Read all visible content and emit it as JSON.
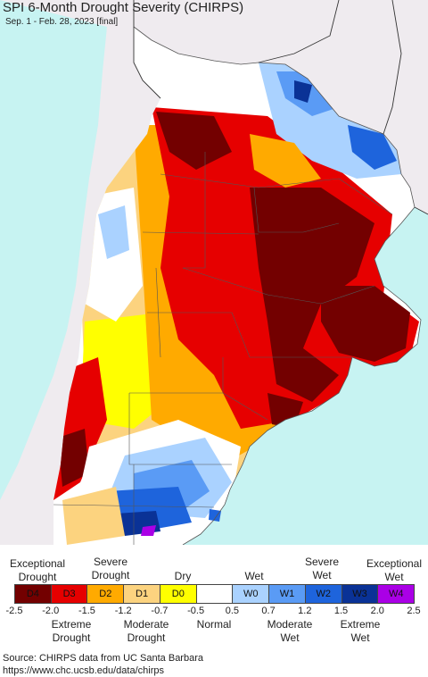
{
  "header": {
    "title": "SPI 6-Month Drought Severity (CHIRPS)",
    "subtitle": "Sep. 1 - Feb. 28, 2023 [final]"
  },
  "map": {
    "ocean_color": "#c7f3f2",
    "outside_land_color": "#efebef",
    "border_color": "#555555"
  },
  "legend": {
    "top_labels": [
      {
        "text": "Exceptional\nDrought"
      },
      {
        "text": "Severe\nDrought"
      },
      {
        "text": "Dry"
      },
      {
        "text": "Wet"
      },
      {
        "text": "Severe\nWet"
      },
      {
        "text": "Exceptional\nWet"
      }
    ],
    "categories": [
      {
        "code": "D4",
        "color": "#730000"
      },
      {
        "code": "D3",
        "color": "#e60000"
      },
      {
        "code": "D2",
        "color": "#ffaa00"
      },
      {
        "code": "D1",
        "color": "#fcd37f"
      },
      {
        "code": "D0",
        "color": "#ffff00"
      },
      {
        "code": "",
        "color": "#ffffff"
      },
      {
        "code": "W0",
        "color": "#aad2ff"
      },
      {
        "code": "W1",
        "color": "#5a9bf5"
      },
      {
        "code": "W2",
        "color": "#1e64dc"
      },
      {
        "code": "W3",
        "color": "#0a3296"
      },
      {
        "code": "W4",
        "color": "#aa00e6"
      }
    ],
    "ticks": [
      "-2.5",
      "-2.0",
      "-1.5",
      "-1.2",
      "-0.7",
      "-0.5",
      "0.5",
      "0.7",
      "1.2",
      "1.5",
      "2.0",
      "2.5"
    ],
    "bottom_labels": [
      {
        "text": "Extreme\nDrought"
      },
      {
        "text": "Moderate\nDrought"
      },
      {
        "text": "Normal"
      },
      {
        "text": "Moderate\nWet"
      },
      {
        "text": "Extreme\nWet"
      }
    ]
  },
  "source": {
    "line1": "Source: CHIRPS data from UC Santa Barbara",
    "line2": "https://www.chc.ucsb.edu/data/chirps"
  }
}
